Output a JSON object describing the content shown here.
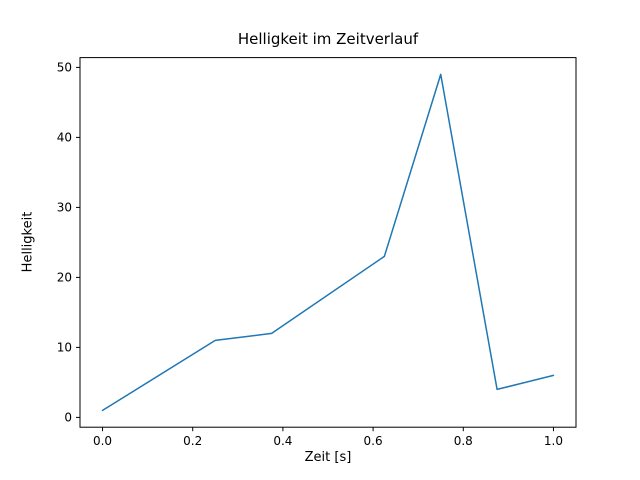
{
  "figure": {
    "background": "#ffffff"
  },
  "chart_data": {
    "type": "line",
    "title": "Helligkeit im Zeitverlauf",
    "xlabel": "Zeit [s]",
    "ylabel": "Helligkeit",
    "x": [
      0.0,
      0.25,
      0.375,
      0.625,
      0.75,
      0.875,
      1.0
    ],
    "y": [
      1,
      11,
      12,
      23,
      49,
      4,
      6
    ],
    "line_color": "#1f77b4",
    "line_width": 1.5,
    "xlim": [
      -0.05,
      1.05
    ],
    "ylim": [
      -1.4,
      51.4
    ],
    "xticks": [
      0.0,
      0.2,
      0.4,
      0.6,
      0.8,
      1.0
    ],
    "xtick_labels": [
      "0.0",
      "0.2",
      "0.4",
      "0.6",
      "0.8",
      "1.0"
    ],
    "yticks": [
      0,
      10,
      20,
      30,
      40,
      50
    ],
    "ytick_labels": [
      "0",
      "10",
      "20",
      "30",
      "40",
      "50"
    ],
    "grid": false,
    "legend_position": "none"
  }
}
